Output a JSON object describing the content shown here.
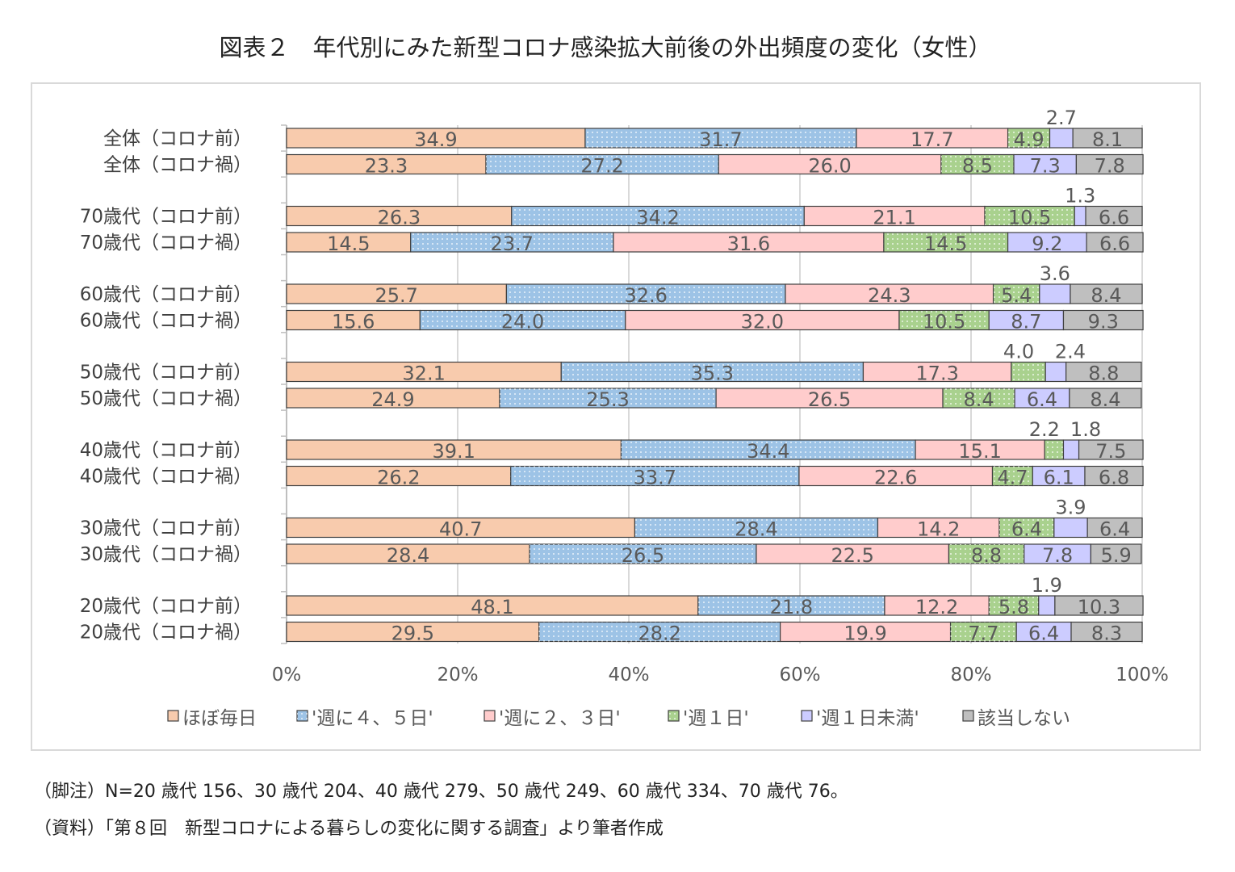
{
  "chart_data": {
    "type": "bar",
    "orientation": "horizontal",
    "stacked": "percent",
    "title": "図表２　年代別にみた新型コロナ感染拡大前後の外出頻度の変化（女性）",
    "categories": [
      "全体（コロナ前）",
      "全体（コロナ禍）",
      "70歳代（コロナ前）",
      "70歳代（コロナ禍）",
      "60歳代（コロナ前）",
      "60歳代（コロナ禍）",
      "50歳代（コロナ前）",
      "50歳代（コロナ禍）",
      "40歳代（コロナ前）",
      "40歳代（コロナ禍）",
      "30歳代（コロナ前）",
      "30歳代（コロナ禍）",
      "20歳代（コロナ前）",
      "20歳代（コロナ禍）"
    ],
    "series": [
      {
        "name": "ほぼ毎日",
        "color": "#F8CBAD",
        "pattern": "none",
        "values": [
          34.9,
          23.3,
          26.3,
          14.5,
          25.7,
          15.6,
          32.1,
          24.9,
          39.1,
          26.2,
          40.7,
          28.4,
          48.1,
          29.5
        ]
      },
      {
        "name": "'週に４、５日'",
        "color": "#9DC3E6",
        "pattern": "dots",
        "values": [
          31.7,
          27.2,
          34.2,
          23.7,
          32.6,
          24.0,
          35.3,
          25.3,
          34.4,
          33.7,
          28.4,
          26.5,
          21.8,
          28.2
        ]
      },
      {
        "name": "'週に２、３日'",
        "color": "#FFCCCC",
        "pattern": "none",
        "values": [
          17.7,
          26.0,
          21.1,
          31.6,
          24.3,
          32.0,
          17.3,
          26.5,
          15.1,
          22.6,
          14.2,
          22.5,
          12.2,
          19.9
        ]
      },
      {
        "name": "'週１日'",
        "color": "#A9D18E",
        "pattern": "dots",
        "values": [
          4.9,
          8.5,
          10.5,
          14.5,
          5.4,
          10.5,
          4.0,
          8.4,
          2.2,
          4.7,
          6.4,
          8.8,
          5.8,
          7.7
        ]
      },
      {
        "name": "'週１日未満'",
        "color": "#CCCCFF",
        "pattern": "none",
        "values": [
          2.7,
          7.3,
          1.3,
          9.2,
          3.6,
          8.7,
          2.4,
          6.4,
          1.8,
          6.1,
          3.9,
          7.8,
          1.9,
          6.4
        ]
      },
      {
        "name": "該当しない",
        "color": "#BFBFBF",
        "pattern": "none",
        "values": [
          8.1,
          7.8,
          6.6,
          6.6,
          8.4,
          9.3,
          8.8,
          8.4,
          7.5,
          6.8,
          6.4,
          5.9,
          10.3,
          8.3
        ]
      }
    ],
    "xlim": [
      0,
      100
    ],
    "xticks": [
      "0%",
      "20%",
      "40%",
      "60%",
      "80%",
      "100%"
    ],
    "grid": true,
    "legend": "bottom"
  },
  "notes": [
    "（脚注）N=20 歳代 156、30 歳代 204、40 歳代 279、50 歳代 249、60 歳代 334、70 歳代 76。",
    "（資料）「第８回　新型コロナによる暮らしの変化に関する調査」より筆者作成"
  ]
}
